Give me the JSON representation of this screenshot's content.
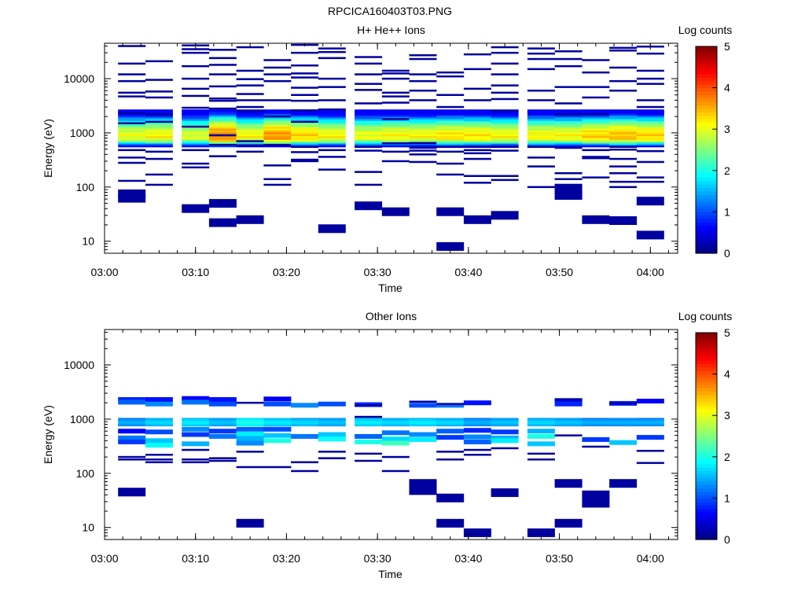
{
  "title": "RPCICA160403T03.PNG",
  "chart_data": [
    {
      "type": "heatmap",
      "title": "H+ He++ Ions",
      "xlabel": "Time",
      "ylabel": "Energy (eV)",
      "xlim": [
        "03:00",
        "04:03"
      ],
      "ylim": [
        6,
        45000
      ],
      "yscale": "log",
      "xticks": [
        "03:00",
        "03:10",
        "03:20",
        "03:30",
        "03:40",
        "03:50",
        "04:00"
      ],
      "yticks": [
        "10",
        "100",
        "1000",
        "10000"
      ],
      "colorbar": {
        "label": "Log counts",
        "range": [
          0,
          5
        ],
        "ticks": [
          "0",
          "1",
          "2",
          "3",
          "4",
          "5"
        ]
      },
      "time_bins": [
        "03:03",
        "03:06",
        "03:10",
        "03:13",
        "03:16",
        "03:19",
        "03:22",
        "03:25",
        "03:29",
        "03:32",
        "03:35",
        "03:38",
        "03:41",
        "03:44",
        "03:48",
        "03:51",
        "03:54",
        "03:57",
        "04:00"
      ],
      "band": {
        "energy_range": [
          550,
          2700
        ],
        "peak_energy": 850,
        "peak_values": [
          3.2,
          3.3,
          3.1,
          3.9,
          3.3,
          3.8,
          3.5,
          3.3,
          3.2,
          3.3,
          3.3,
          3.4,
          3.4,
          3.3,
          3.3,
          3.3,
          3.5,
          3.6,
          3.5
        ]
      },
      "scattered": [
        [
          40000,
          19000,
          12000,
          9000,
          5500,
          4700,
          2300,
          1500,
          480,
          350,
          280,
          130,
          75,
          62
        ],
        [
          21000,
          9500,
          5800,
          4500,
          2200,
          1600,
          450,
          330,
          170,
          110
        ],
        [
          41000,
          35000,
          30000,
          17000,
          10000,
          6500,
          4800,
          2900,
          1300,
          480,
          270,
          230,
          40
        ],
        [
          34000,
          24000,
          18000,
          12000,
          7200,
          4300,
          3900,
          2800,
          900,
          600,
          370,
          50,
          22
        ],
        [
          38000,
          14000,
          9800,
          7500,
          5200,
          4000,
          3000,
          2500,
          700,
          580,
          450,
          25
        ],
        [
          22000,
          16000,
          12000,
          9000,
          4000,
          2000,
          600,
          250,
          140,
          110
        ],
        [
          42000,
          30000,
          17500,
          12500,
          10500,
          6800,
          5000,
          3900,
          2600,
          1600,
          550,
          440,
          320,
          300
        ],
        [
          36000,
          31000,
          24000,
          10000,
          7000,
          4000,
          2700,
          480,
          360,
          210,
          17
        ],
        [
          25000,
          19000,
          12000,
          8000,
          6200,
          3500,
          550,
          470,
          190,
          110,
          45
        ],
        [
          14000,
          12500,
          10000,
          5500,
          4700,
          3600,
          1800,
          640,
          450,
          300,
          35
        ],
        [
          27000,
          23000,
          12000,
          9000,
          6000,
          4000,
          650,
          530,
          470,
          400,
          290
        ],
        [
          13000,
          11000,
          5000,
          3000,
          550,
          450,
          270,
          170,
          35,
          8
        ],
        [
          28000,
          15000,
          6500,
          4000,
          550,
          480,
          420,
          330,
          160,
          120,
          25
        ],
        [
          38000,
          30000,
          19000,
          12000,
          7500,
          5500,
          4200,
          2500,
          550,
          470,
          160,
          135,
          30
        ],
        [
          36000,
          29000,
          23000,
          15000,
          6000,
          4000,
          550,
          350,
          240,
          100
        ],
        [
          32000,
          23000,
          17000,
          7000,
          3500,
          2200,
          530,
          180,
          140,
          110,
          90,
          70
        ],
        [
          22000,
          13000,
          7000,
          4500,
          2200,
          480,
          360,
          340,
          150,
          25
        ],
        [
          37000,
          33000,
          16000,
          9000,
          6000,
          550,
          490,
          330,
          240,
          180,
          125,
          100,
          24
        ],
        [
          39000,
          29000,
          14000,
          10000,
          8000,
          4000,
          3000,
          460,
          290,
          150,
          125,
          55,
          13
        ]
      ]
    },
    {
      "type": "heatmap",
      "title": "Other Ions",
      "xlabel": "Time",
      "ylabel": "Energy (eV)",
      "xlim": [
        "03:00",
        "04:03"
      ],
      "ylim": [
        6,
        45000
      ],
      "yscale": "log",
      "xticks": [
        "03:00",
        "03:10",
        "03:20",
        "03:30",
        "03:40",
        "03:50",
        "04:00"
      ],
      "yticks": [
        "10",
        "100",
        "1000",
        "10000"
      ],
      "colorbar": {
        "label": "Log counts",
        "range": [
          0,
          5
        ],
        "ticks": [
          "0",
          "1",
          "2",
          "3",
          "4",
          "5"
        ]
      },
      "time_bins": [
        "03:03",
        "03:06",
        "03:10",
        "03:13",
        "03:16",
        "03:19",
        "03:22",
        "03:25",
        "03:29",
        "03:32",
        "03:35",
        "03:38",
        "03:41",
        "03:44",
        "03:48",
        "03:51",
        "03:54",
        "03:57",
        "04:00"
      ],
      "band": {
        "energy_range": [
          750,
          1050
        ],
        "peak_energy": 880,
        "peak_values": [
          1.6,
          1.8,
          1.9,
          1.7,
          2.1,
          1.9,
          1.8,
          1.7,
          1.9,
          1.8,
          1.9,
          1.8,
          1.6,
          1.7,
          1.8,
          1.7,
          1.6,
          1.6,
          1.6
        ]
      },
      "cores": [
        [
          [
            2300,
            0.8
          ],
          [
            2050,
            1.1
          ],
          [
            600,
            0.6
          ],
          [
            450,
            1.2
          ],
          [
            380,
            0.9
          ]
        ],
        [
          [
            2300,
            0.7
          ],
          [
            1900,
            1.3
          ],
          [
            580,
            1.0
          ],
          [
            400,
            1.6
          ],
          [
            330,
            1.9
          ]
        ],
        [
          [
            2400,
            0.6
          ],
          [
            2050,
            1.2
          ],
          [
            650,
            1.3
          ],
          [
            520,
            0.9
          ],
          [
            350,
            1.5
          ]
        ],
        [
          [
            2300,
            0.7
          ],
          [
            1900,
            1.0
          ],
          [
            600,
            0.9
          ],
          [
            480,
            1.2
          ]
        ],
        [
          [
            650,
            1.1
          ],
          [
            530,
            1.8
          ],
          [
            440,
            1.5
          ],
          [
            360,
            1.3
          ]
        ],
        [
          [
            2350,
            0.6
          ],
          [
            1900,
            1.0
          ],
          [
            650,
            1.0
          ],
          [
            500,
            1.6
          ],
          [
            400,
            2.0
          ]
        ],
        [
          [
            1800,
            1.3
          ],
          [
            480,
            1.2
          ]
        ],
        [
          [
            1900,
            1.0
          ],
          [
            520,
            1.6
          ],
          [
            430,
            1.9
          ]
        ],
        [
          [
            1850,
            0.8
          ],
          [
            480,
            1.1
          ],
          [
            380,
            2.0
          ]
        ],
        [
          [
            560,
            1.2
          ],
          [
            430,
            1.7
          ],
          [
            360,
            2.2
          ]
        ],
        [
          [
            1800,
            1.0
          ],
          [
            520,
            1.3
          ],
          [
            420,
            1.8
          ]
        ],
        [
          [
            1800,
            1.2
          ],
          [
            600,
            1.1
          ],
          [
            460,
            0.9
          ]
        ],
        [
          [
            2000,
            0.7
          ],
          [
            620,
            0.8
          ],
          [
            470,
            1.3
          ],
          [
            380,
            1.1
          ]
        ],
        [
          [
            580,
            0.9
          ],
          [
            450,
            1.5
          ],
          [
            400,
            1.8
          ]
        ],
        [
          [
            600,
            1.5
          ],
          [
            480,
            2.0
          ],
          [
            350,
            1.6
          ]
        ],
        [
          [
            2200,
            0.5
          ],
          [
            1900,
            0.8
          ]
        ],
        [
          [
            420,
            0.9
          ]
        ],
        [
          [
            1950,
            0.8
          ],
          [
            370,
            1.6
          ]
        ],
        [
          [
            2150,
            0.6
          ],
          [
            460,
            0.9
          ]
        ]
      ],
      "scattered": [
        [
          200,
          180,
          45
        ],
        [
          220,
          180,
          160
        ],
        [
          270,
          180,
          160
        ],
        [
          190,
          170
        ],
        [
          2000,
          250,
          130,
          12
        ],
        [
          130
        ],
        [
          160,
          110
        ],
        [
          250,
          190
        ],
        [
          1800,
          1100,
          230,
          170
        ],
        [
          200,
          110
        ],
        [
          2100,
          65,
          48
        ],
        [
          1900,
          250,
          180,
          35,
          12
        ],
        [
          270,
          220,
          8
        ],
        [
          290,
          44
        ],
        [
          230,
          180,
          8
        ],
        [
          2300,
          500,
          65,
          12
        ],
        [
          310,
          40,
          28
        ],
        [
          1950,
          65
        ],
        [
          260,
          155
        ]
      ]
    }
  ]
}
